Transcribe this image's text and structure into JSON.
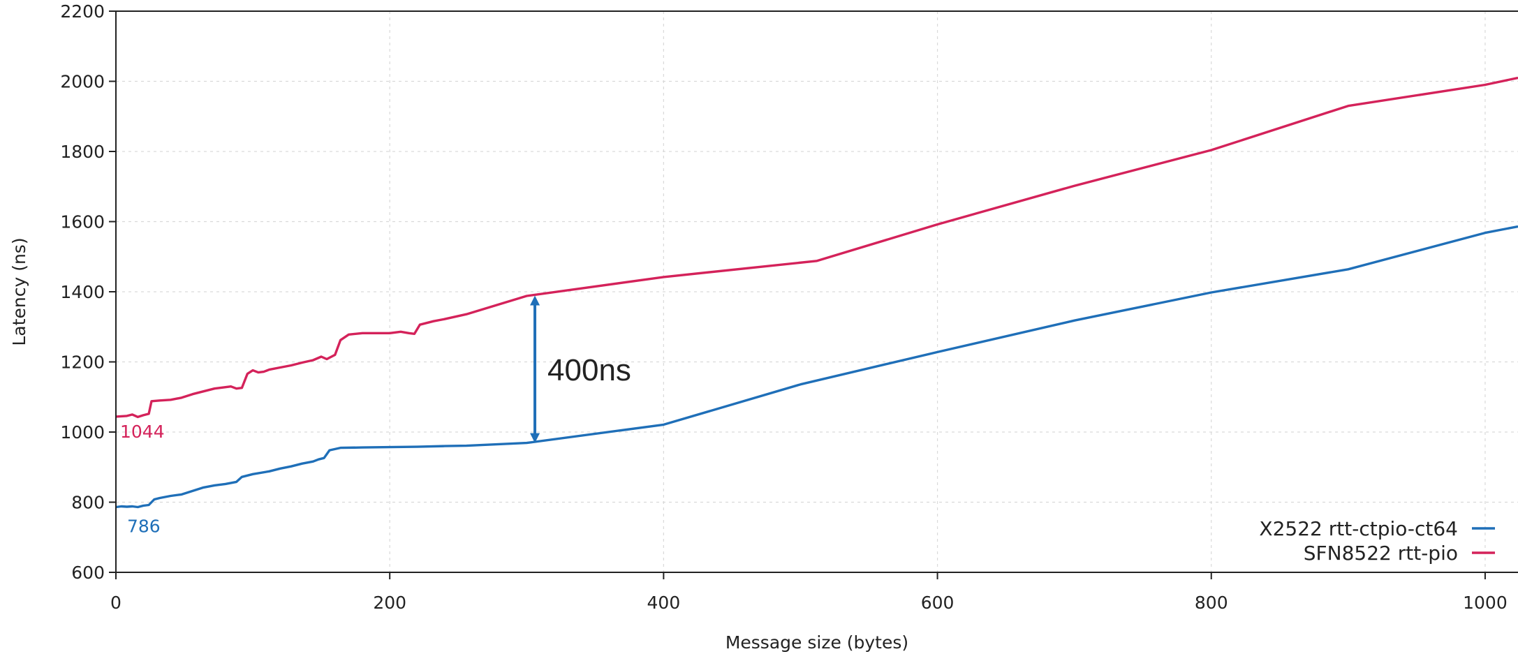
{
  "chart_data": {
    "type": "line",
    "title": "",
    "xlabel": "Message size (bytes)",
    "ylabel": "Latency (ns)",
    "xlim": [
      0,
      1024
    ],
    "ylim": [
      600,
      2200
    ],
    "x_ticks": [
      0,
      200,
      400,
      600,
      800,
      1000
    ],
    "y_ticks": [
      600,
      800,
      1000,
      1200,
      1400,
      1600,
      1800,
      2000,
      2200
    ],
    "grid": true,
    "legend_position": "bottom-right",
    "series": [
      {
        "name": "X2522 rtt-ctpio-ct64",
        "color": "#1f6fb8",
        "start_label": "786",
        "points": [
          [
            0,
            786
          ],
          [
            4,
            788
          ],
          [
            8,
            787
          ],
          [
            12,
            788
          ],
          [
            16,
            786
          ],
          [
            20,
            790
          ],
          [
            24,
            792
          ],
          [
            28,
            808
          ],
          [
            32,
            812
          ],
          [
            40,
            818
          ],
          [
            48,
            822
          ],
          [
            56,
            832
          ],
          [
            64,
            842
          ],
          [
            72,
            848
          ],
          [
            80,
            852
          ],
          [
            88,
            858
          ],
          [
            92,
            872
          ],
          [
            100,
            880
          ],
          [
            112,
            888
          ],
          [
            120,
            896
          ],
          [
            128,
            902
          ],
          [
            136,
            910
          ],
          [
            144,
            916
          ],
          [
            148,
            922
          ],
          [
            152,
            926
          ],
          [
            156,
            948
          ],
          [
            164,
            955
          ],
          [
            180,
            956
          ],
          [
            200,
            957
          ],
          [
            220,
            958
          ],
          [
            240,
            960
          ],
          [
            256,
            961
          ],
          [
            300,
            969
          ],
          [
            400,
            1021
          ],
          [
            500,
            1136
          ],
          [
            600,
            1228
          ],
          [
            700,
            1318
          ],
          [
            800,
            1398
          ],
          [
            900,
            1464
          ],
          [
            1000,
            1568
          ],
          [
            1024,
            1586
          ]
        ]
      },
      {
        "name": "SFN8522 rtt-pio",
        "color": "#d4225a",
        "start_label": "1044",
        "points": [
          [
            0,
            1044
          ],
          [
            8,
            1046
          ],
          [
            12,
            1050
          ],
          [
            16,
            1043
          ],
          [
            20,
            1048
          ],
          [
            24,
            1052
          ],
          [
            26,
            1088
          ],
          [
            32,
            1090
          ],
          [
            40,
            1092
          ],
          [
            48,
            1098
          ],
          [
            56,
            1108
          ],
          [
            64,
            1116
          ],
          [
            72,
            1124
          ],
          [
            80,
            1128
          ],
          [
            84,
            1130
          ],
          [
            88,
            1124
          ],
          [
            92,
            1126
          ],
          [
            96,
            1166
          ],
          [
            100,
            1176
          ],
          [
            104,
            1170
          ],
          [
            108,
            1172
          ],
          [
            112,
            1178
          ],
          [
            120,
            1184
          ],
          [
            128,
            1190
          ],
          [
            136,
            1198
          ],
          [
            144,
            1205
          ],
          [
            150,
            1215
          ],
          [
            154,
            1208
          ],
          [
            160,
            1220
          ],
          [
            164,
            1262
          ],
          [
            170,
            1278
          ],
          [
            180,
            1282
          ],
          [
            200,
            1282
          ],
          [
            208,
            1286
          ],
          [
            214,
            1282
          ],
          [
            218,
            1280
          ],
          [
            222,
            1306
          ],
          [
            232,
            1316
          ],
          [
            240,
            1322
          ],
          [
            256,
            1336
          ],
          [
            300,
            1388
          ],
          [
            400,
            1442
          ],
          [
            512,
            1488
          ],
          [
            600,
            1592
          ],
          [
            700,
            1702
          ],
          [
            800,
            1804
          ],
          [
            900,
            1930
          ],
          [
            1000,
            1990
          ],
          [
            1024,
            2010
          ]
        ]
      }
    ],
    "annotations": [
      {
        "text": "400ns",
        "x": 306,
        "y_from": 1385,
        "y_to": 973,
        "color": "#1f6fb8"
      }
    ]
  }
}
